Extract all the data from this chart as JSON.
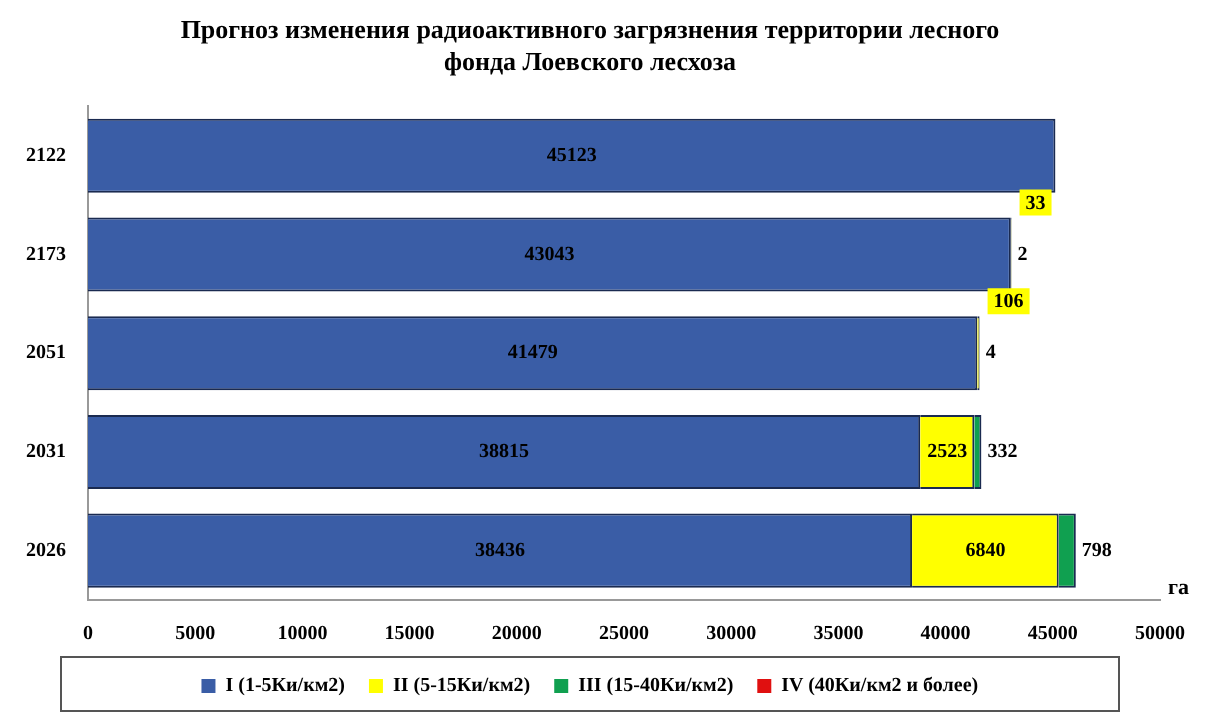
{
  "chart_data": {
    "type": "bar",
    "orientation": "horizontal",
    "stacked": true,
    "title": "Прогноз изменения радиоактивного загрязнения территории лесного фонда Лоевского лесхоза",
    "xlabel": "га",
    "categories": [
      "2122",
      "2173",
      "2051",
      "2031",
      "2026"
    ],
    "series": [
      {
        "name": "I (1-5Ки/км2)",
        "color": "#3a5da6",
        "values": [
          45123,
          43043,
          41479,
          38815,
          38436
        ]
      },
      {
        "name": "II (5-15Ки/км2)",
        "color": "#ffff00",
        "values": [
          null,
          33,
          106,
          2523,
          6840
        ]
      },
      {
        "name": "III (15-40Ки/км2)",
        "color": "#10a050",
        "values": [
          null,
          2,
          4,
          332,
          798
        ]
      },
      {
        "name": "IV (40Ки/км2 и более)",
        "color": "#e01010",
        "values": [
          null,
          null,
          null,
          null,
          null
        ]
      }
    ],
    "xlim": [
      0,
      50000
    ],
    "xticks": [
      0,
      5000,
      10000,
      15000,
      20000,
      25000,
      30000,
      35000,
      40000,
      45000,
      50000
    ],
    "grid": false,
    "legend": "bottom",
    "data_labels": true
  }
}
